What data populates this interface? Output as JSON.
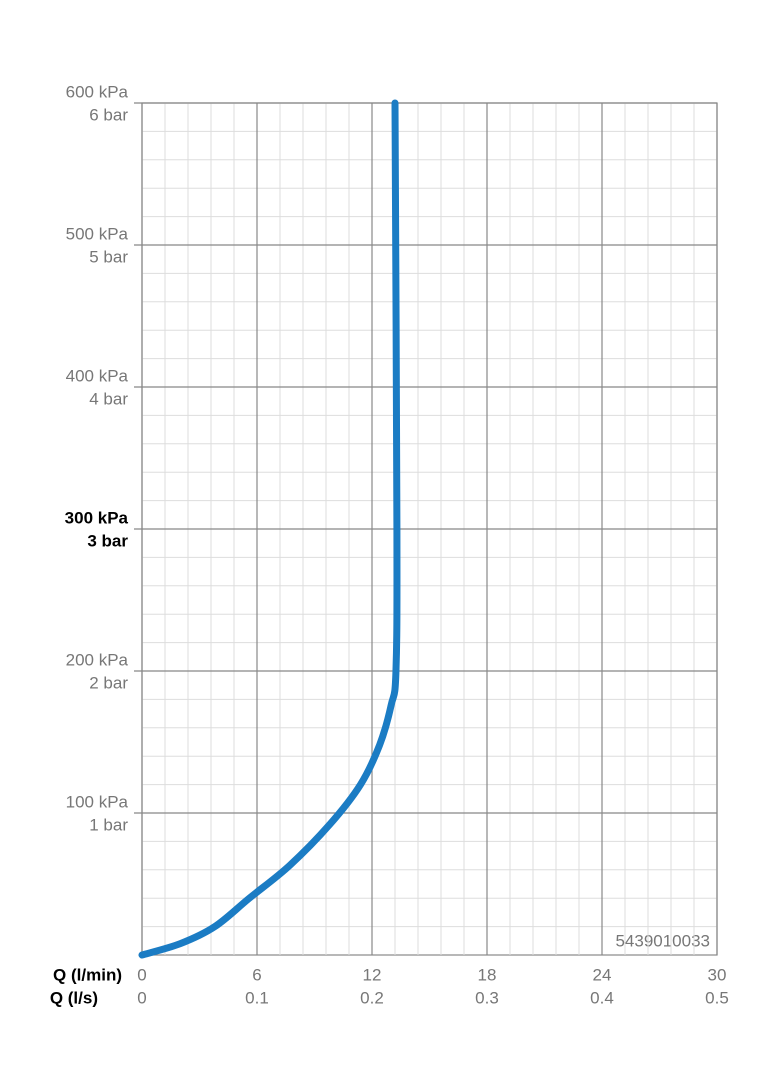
{
  "chart_data": {
    "type": "line",
    "xlabel": "Q (l/min)",
    "x2label": "Q (l/s)",
    "xlim": [
      0,
      30
    ],
    "xticks": [
      0,
      6,
      12,
      18,
      24,
      30
    ],
    "x2lim": [
      0,
      0.5
    ],
    "x2ticks": [
      0,
      0.1,
      0.2,
      0.3,
      0.4,
      0.5
    ],
    "ylim": [
      0,
      600
    ],
    "yticks": [
      {
        "value": 100,
        "label": "100 kPa"
      },
      {
        "value": 200,
        "label": "200 kPa"
      },
      {
        "value": 300,
        "label": "300 kPa"
      },
      {
        "value": 400,
        "label": "400 kPa"
      },
      {
        "value": 500,
        "label": "500 kPa"
      },
      {
        "value": 600,
        "label": "600 kPa"
      }
    ],
    "y2lim": [
      0,
      6
    ],
    "y2ticks": [
      {
        "value": 1,
        "label": "1 bar"
      },
      {
        "value": 2,
        "label": "2 bar"
      },
      {
        "value": 3,
        "label": "3 bar"
      },
      {
        "value": 4,
        "label": "4 bar"
      },
      {
        "value": 5,
        "label": "5 bar"
      },
      {
        "value": 6,
        "label": "6 bar"
      }
    ],
    "emphasized_ytick": 300,
    "grid": true,
    "annotation": "5439010033",
    "series": [
      {
        "color": "#1b7cc4",
        "x": [
          0,
          2,
          3.8,
          5.6,
          7.7,
          9.8,
          11.4,
          12.4,
          13,
          13.25,
          13.3,
          13.2
        ],
        "values": [
          0,
          8,
          20,
          40,
          63,
          92,
          120,
          148,
          176,
          200,
          300,
          600
        ]
      }
    ]
  }
}
